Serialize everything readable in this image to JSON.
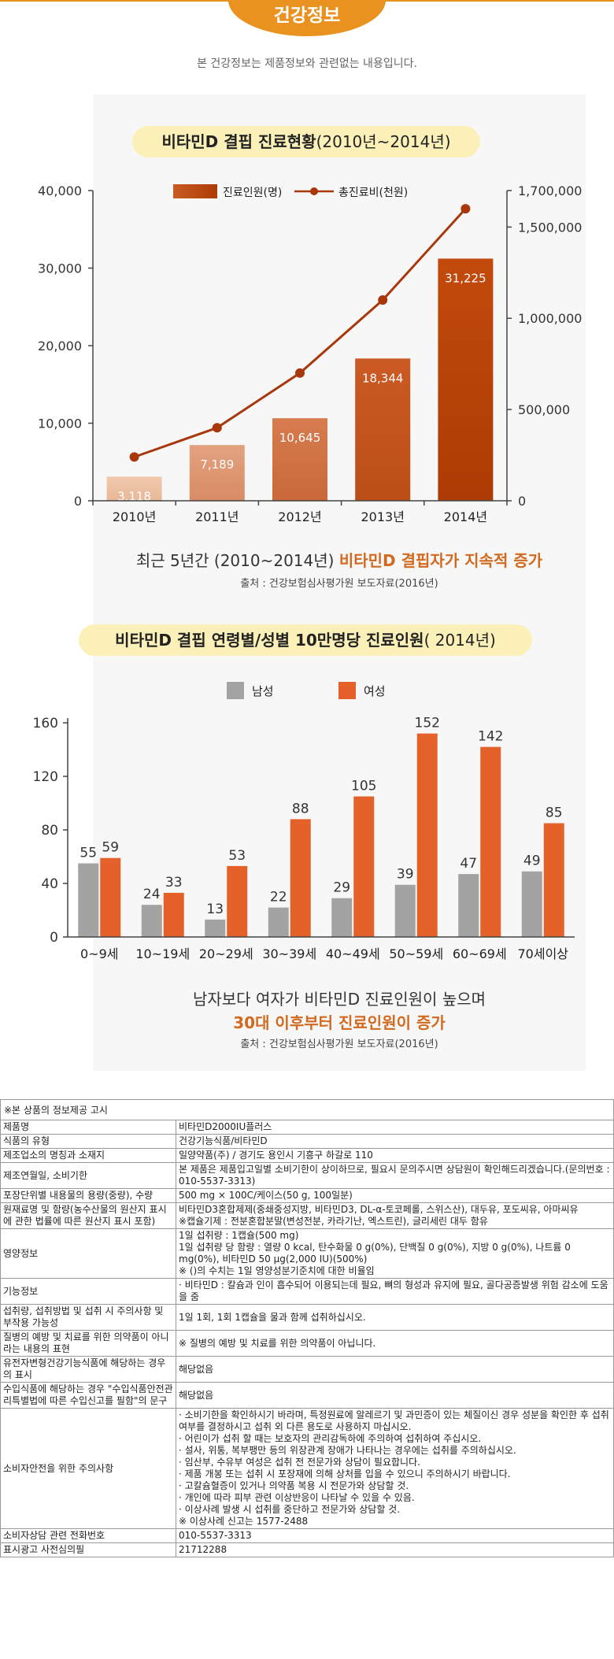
{
  "header": {
    "title": "건강정보",
    "disclaimer": "본 건강정보는 제품정보와 관련없는 내용입니다."
  },
  "chart1": {
    "title_main": "비타민D 결핍 진료현황",
    "title_sub": "(2010년~2014년)",
    "caption_prefix": "최근 5년간 (2010~2014년) ",
    "caption_highlight": "비타민D 결핍자가 지속적 증가",
    "source": "출처 : 건강보험심사평가원 보도자료(2016년)"
  },
  "chart2": {
    "title_main": "비타민D 결핍 연령별/성별 10만명당 진료인원",
    "title_sub": "( 2014년)",
    "caption_line1": "남자보다 여자가 비타민D 진료인원이 높으며",
    "caption_line2": "30대 이후부터 진료인원이 증가",
    "source": "출처 : 건강보험심사평가원 보도자료(2016년)"
  },
  "chart_data": [
    {
      "type": "bar",
      "categories": [
        "2010년",
        "2011년",
        "2012년",
        "2013년",
        "2014년"
      ],
      "series": [
        {
          "name": "진료인원(명)",
          "type": "bar",
          "axis": "left",
          "values": [
            3118,
            7189,
            10645,
            18344,
            31225
          ],
          "labels": [
            "3,118",
            "7,189",
            "10,645",
            "18,344",
            "31,225"
          ]
        },
        {
          "name": "총진료비(천원)",
          "type": "line",
          "axis": "right",
          "values": [
            240000,
            400000,
            700000,
            1100000,
            1600000
          ]
        }
      ],
      "ylim_left": [
        0,
        40000
      ],
      "yticks_left": [
        "0",
        "10,000",
        "20,000",
        "30,000",
        "40,000"
      ],
      "ylim_right": [
        0,
        1700000
      ],
      "yticks_right": [
        "0",
        "500,000",
        "1,000,000",
        "1,500,000",
        "1,700,000"
      ],
      "legend": "top",
      "colors": {
        "bar_top": [
          "#f1c9ad",
          "#e3a27f",
          "#d67c4f",
          "#cb5a24",
          "#c24a0c"
        ],
        "bar_bottom": [
          "#e8b898",
          "#d88c64",
          "#c9683a",
          "#bb4e17",
          "#ac3c04"
        ],
        "line": "#a8380c",
        "axis": "#444444"
      }
    },
    {
      "type": "bar",
      "categories": [
        "0~9세",
        "10~19세",
        "20~29세",
        "30~39세",
        "40~49세",
        "50~59세",
        "60~69세",
        "70세이상"
      ],
      "series": [
        {
          "name": "남성",
          "values": [
            55,
            24,
            13,
            22,
            29,
            39,
            47,
            49
          ]
        },
        {
          "name": "여성",
          "values": [
            59,
            33,
            53,
            88,
            105,
            152,
            142,
            85
          ]
        }
      ],
      "ylim": [
        0,
        160
      ],
      "yticks": [
        "0",
        "40",
        "80",
        "120",
        "160"
      ],
      "legend": "top",
      "colors": {
        "male": "#a3a3a3",
        "female": "#e4622a",
        "axis": "#444444"
      }
    }
  ],
  "notice": {
    "title": "※본 상품의 정보제공 고시",
    "rows": [
      {
        "key": "제품명",
        "value": "비타민D2000IU플러스"
      },
      {
        "key": "식품의 유형",
        "value": "건강기능식품/비타민D"
      },
      {
        "key": "제조업소의 명칭과 소재지",
        "value": "일양약품(주) / 경기도 용인시 기흥구 하갈로 110"
      },
      {
        "key": "제조연월일, 소비기한",
        "value": "본 제품은 제품입고일별 소비기한이 상이하므로, 필요시 문의주시면 상담원이 확인해드리겠습니다.(문의번호 : 010-5537-3313)"
      },
      {
        "key": "포장단위별 내용물의 용량(중량), 수량",
        "value": "500 mg × 100C/케이스(50 g, 100일분)"
      },
      {
        "key": "원재료명 및 함량(농수산물의 원산지 표시에 관한 법률에 따른 원산지 표시 포함)",
        "value": "비타민D3혼합제제(중쇄중성지방, 비타민D3, DL-α-토코페롤, 스위스산), 대두유, 포도씨유, 아마씨유\n※캡슐기제 : 전분혼합분말(변성전분, 카라기난, 엑스트린), 글리세린 대두 함유"
      },
      {
        "key": "영양정보",
        "value": "1일 섭취량 : 1캡슐(500 mg)\n1일 섭취량 당 함량 : 열량 0 kcal, 탄수화물 0 g(0%), 단백질 0 g(0%), 지방 0 g(0%), 나트륨 0 mg(0%), 비타민D 50 μg(2,000 IU)(500%)\n※ ()의 수치는 1일 영양성분기준치에 대한 비율임"
      },
      {
        "key": "기능정보",
        "value": "· 비타민D : 칼슘과 인이 흡수되어 이용되는데 필요, 뼈의 형성과 유지에 필요, 골다공증발생 위험 감소에 도움을 줌"
      },
      {
        "key": "섭취량, 섭취방법 및 섭취 시 주의사항 및 부작용 가능성",
        "value": "1일 1회, 1회 1캡슐을 물과 함께 섭취하십시오."
      },
      {
        "key": "질병의 예방 및 치료를 위한 의약품이 아니라는 내용의 표현",
        "value": "※ 질병의 예방 및 치료를 위한 의약품이 아닙니다."
      },
      {
        "key": "유전자변형건강기능식품에 해당하는 경우의 표시",
        "value": "해당없음"
      },
      {
        "key": "수입식품에 해당하는 경우 \"수입식품안전관리특별법에 따른 수입신고를 필함\"의 문구",
        "value": "해당없음"
      },
      {
        "key": "소비자안전을 위한 주의사항",
        "value": "· 소비기한을 확인하시기 바라며, 특정원료에 알레르기 및 과민증이 있는 체질이신 경우 성분을 확인한 후 섭취여부를 결정하시고 섭취 외 다른 용도로 사용하지 마십시오.\n· 어린이가 섭취 할 때는 보호자의 관리감독하에 주의하여 섭취하여 주십시오.\n· 설사, 위통, 복부팽만 등의 위장관계 장애가 나타나는 경우에는 섭취를 주의하십시오.\n· 임산부, 수유부 여성은 섭취 전 전문가와 상담이 필요합니다.\n· 제품 개봉 또는 섭취 시 포장재에 의해 상처를 입을 수 있으니 주의하시기 바랍니다.\n· 고칼슘혈증이 있거나 의약품 복용 시 전문가와 상담할 것.\n· 개인에 따라 피부 관련 이상반응이 나타날 수 있을 수 있음.\n· 이상사례 발생 시 섭취를 중단하고 전문가와 상담할 것.\n※ 이상사례 신고는 1577-2488"
      },
      {
        "key": "소비자상담 관련 전화번호",
        "value": "010-5537-3313"
      },
      {
        "key": "표시광고 사전심의필",
        "value": "21712288"
      }
    ]
  }
}
